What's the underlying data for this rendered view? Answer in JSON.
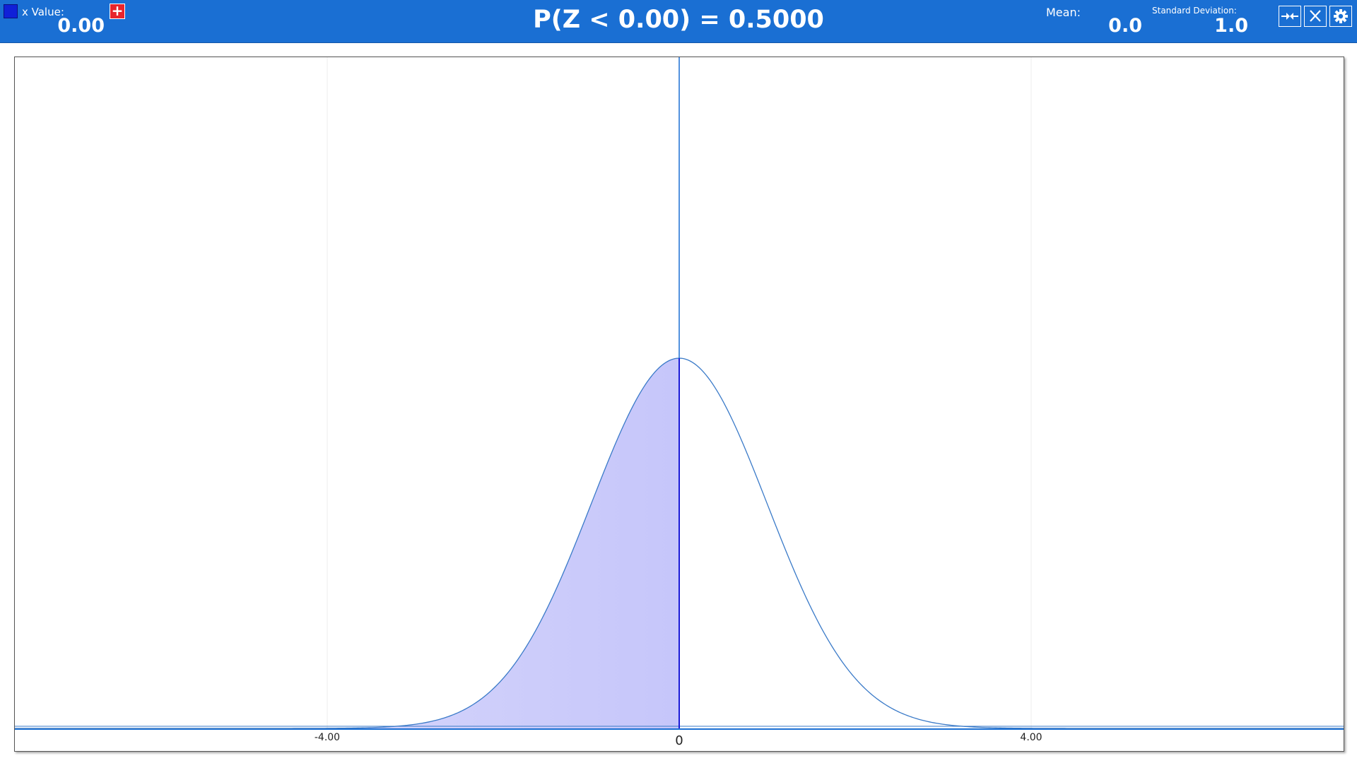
{
  "header": {
    "xvalue_label": "x Value:",
    "xvalue": "0.00",
    "add_label": "+",
    "probability": "P(Z < 0.00) = 0.5000",
    "mean_label": "Mean:",
    "mean": "0.0",
    "sd_label": "Standard Deviation:",
    "sd": "1.0",
    "swatch_color": "#1020d8",
    "toolbar": [
      "collapse-arrows-icon",
      "close-icon",
      "gear-icon"
    ]
  },
  "chart_data": {
    "type": "area",
    "distribution": "normal",
    "mean": 0,
    "sd": 1,
    "x_value": 0,
    "shaded_region": "left of x",
    "shaded_probability": 0.5,
    "xlim": [
      -7.55,
      7.55
    ],
    "x_tick_labels": [
      "-4.00",
      "0",
      "4.00"
    ],
    "x_ticks": [
      -4,
      0,
      4
    ],
    "grid": true,
    "curve_color": "#3a7ac8",
    "fill_color": "#cbcbfa",
    "marker_color": "#1a6fd3"
  }
}
